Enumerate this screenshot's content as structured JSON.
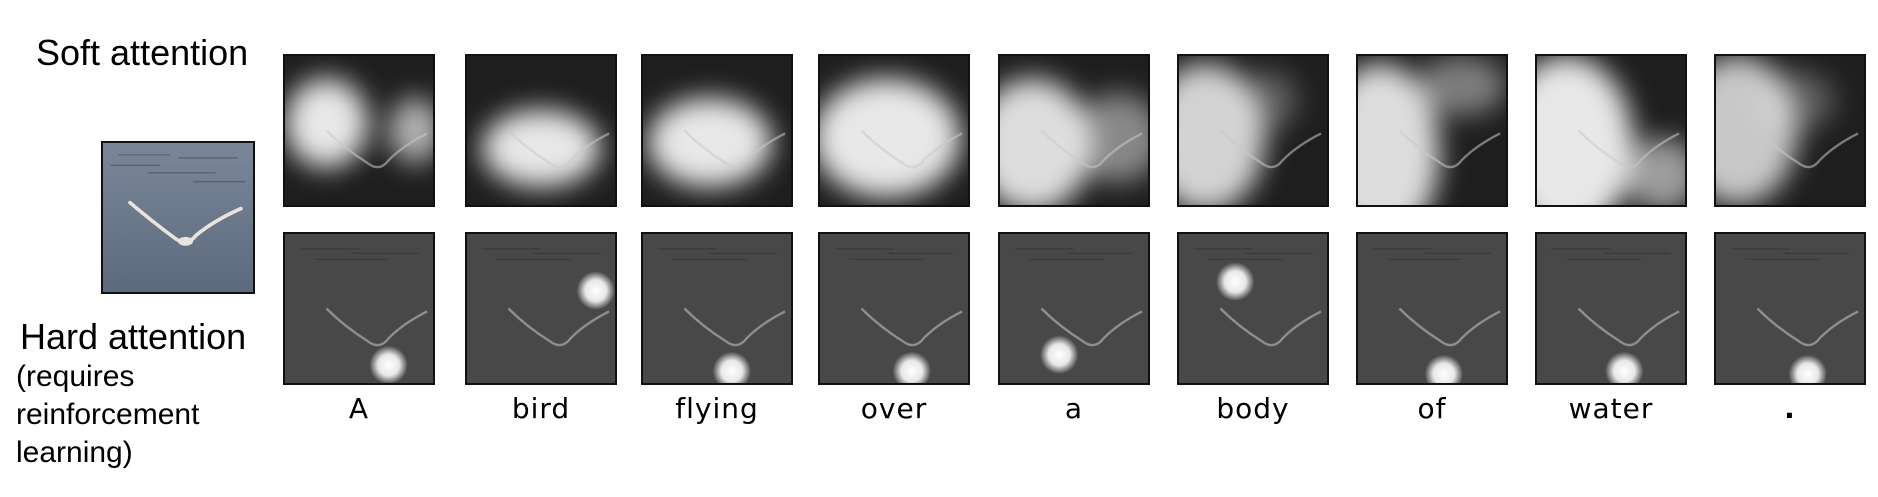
{
  "labels": {
    "soft": "Soft attention",
    "hard": "Hard attention",
    "hard_note_lines": [
      "(requires",
      "reinforcement",
      "learning)"
    ]
  },
  "words": [
    "A",
    "bird",
    "flying",
    "over",
    "a",
    "body",
    "of",
    "water",
    "."
  ]
}
